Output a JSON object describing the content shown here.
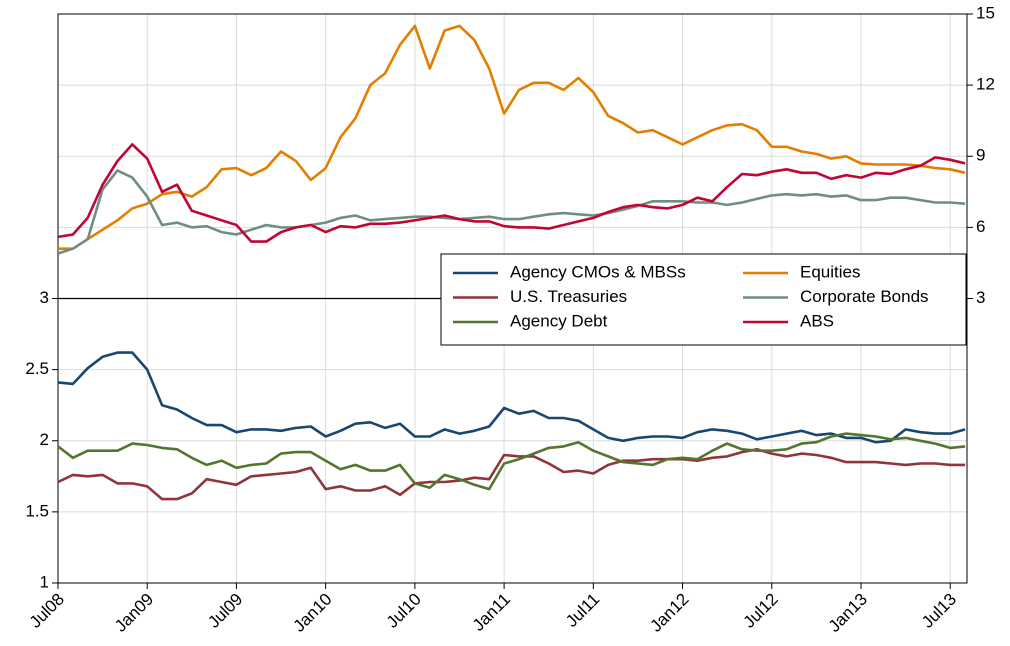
{
  "chart_data": {
    "type": "line",
    "categories": [
      "Jul08",
      null,
      null,
      null,
      null,
      null,
      "Jan09",
      null,
      null,
      null,
      null,
      null,
      "Jul09",
      null,
      null,
      null,
      null,
      null,
      "Jan10",
      null,
      null,
      null,
      null,
      null,
      "Jul10",
      null,
      null,
      null,
      null,
      null,
      "Jan11",
      null,
      null,
      null,
      null,
      null,
      "Jul11",
      null,
      null,
      null,
      null,
      null,
      "Jan12",
      null,
      null,
      null,
      null,
      null,
      "Jul12",
      null,
      null,
      null,
      null,
      null,
      "Jan13",
      null,
      null,
      null,
      null,
      null,
      "Jul13",
      null
    ],
    "ylim": [
      1,
      5
    ],
    "yticks": [
      1,
      1.5,
      2,
      2.5,
      3
    ],
    "y2lim": [
      -9,
      15
    ],
    "y2ticks": [
      3,
      6,
      9,
      12,
      15
    ],
    "grid": true,
    "legend_position": "right",
    "series": [
      {
        "name": "Agency CMOs & MBSs",
        "color": "#1a476f",
        "axis": "y",
        "values": [
          2.41,
          2.4,
          2.51,
          2.59,
          2.62,
          2.62,
          2.5,
          2.25,
          2.22,
          2.16,
          2.11,
          2.11,
          2.06,
          2.08,
          2.08,
          2.07,
          2.09,
          2.1,
          2.03,
          2.07,
          2.12,
          2.13,
          2.09,
          2.12,
          2.03,
          2.03,
          2.08,
          2.05,
          2.07,
          2.1,
          2.23,
          2.19,
          2.21,
          2.16,
          2.16,
          2.14,
          2.08,
          2.02,
          2.0,
          2.02,
          2.03,
          2.03,
          2.02,
          2.06,
          2.08,
          2.07,
          2.05,
          2.01,
          2.03,
          2.05,
          2.07,
          2.04,
          2.05,
          2.02,
          2.02,
          1.99,
          2.0,
          2.08,
          2.06,
          2.05,
          2.05,
          2.08
        ]
      },
      {
        "name": "Equities",
        "color": "#e37e00",
        "axis": "y2",
        "values": [
          5.1,
          5.1,
          5.5,
          5.9,
          6.3,
          6.8,
          7.0,
          7.4,
          7.5,
          7.3,
          7.7,
          8.45,
          8.5,
          8.2,
          8.5,
          9.2,
          8.8,
          8.0,
          8.5,
          9.8,
          10.6,
          12.0,
          12.5,
          13.7,
          14.5,
          12.7,
          14.3,
          14.5,
          13.9,
          12.7,
          10.8,
          11.8,
          12.1,
          12.1,
          11.8,
          12.3,
          11.7,
          10.7,
          10.4,
          10.0,
          10.1,
          9.8,
          9.5,
          9.8,
          10.1,
          10.3,
          10.35,
          10.1,
          9.4,
          9.4,
          9.2,
          9.1,
          8.9,
          9.0,
          8.7,
          8.65,
          8.65,
          8.65,
          8.6,
          8.5,
          8.45,
          8.3
        ]
      },
      {
        "name": "U.S. Treasuries",
        "color": "#90353b",
        "axis": "y",
        "values": [
          1.71,
          1.76,
          1.75,
          1.76,
          1.7,
          1.7,
          1.68,
          1.59,
          1.59,
          1.63,
          1.73,
          1.71,
          1.69,
          1.75,
          1.76,
          1.77,
          1.78,
          1.81,
          1.66,
          1.68,
          1.65,
          1.65,
          1.68,
          1.62,
          1.7,
          1.71,
          1.71,
          1.72,
          1.74,
          1.73,
          1.9,
          1.89,
          1.89,
          1.84,
          1.78,
          1.79,
          1.77,
          1.83,
          1.86,
          1.86,
          1.87,
          1.87,
          1.87,
          1.86,
          1.88,
          1.89,
          1.92,
          1.94,
          1.91,
          1.89,
          1.91,
          1.9,
          1.88,
          1.85,
          1.85,
          1.85,
          1.84,
          1.83,
          1.84,
          1.84,
          1.83,
          1.83
        ]
      },
      {
        "name": "Corporate Bonds",
        "color": "#6e8e84",
        "axis": "y2",
        "values": [
          4.9,
          5.1,
          5.5,
          7.6,
          8.4,
          8.1,
          7.3,
          6.1,
          6.2,
          6.0,
          6.05,
          5.8,
          5.7,
          5.9,
          6.1,
          6.0,
          6.0,
          6.1,
          6.2,
          6.4,
          6.5,
          6.3,
          6.35,
          6.4,
          6.45,
          6.45,
          6.4,
          6.35,
          6.4,
          6.45,
          6.35,
          6.35,
          6.45,
          6.55,
          6.6,
          6.55,
          6.5,
          6.6,
          6.75,
          6.9,
          7.1,
          7.1,
          7.1,
          7.05,
          7.05,
          6.95,
          7.05,
          7.2,
          7.35,
          7.4,
          7.35,
          7.4,
          7.3,
          7.35,
          7.15,
          7.15,
          7.25,
          7.25,
          7.15,
          7.05,
          7.05,
          7.0
        ]
      },
      {
        "name": "Agency Debt",
        "color": "#55752f",
        "axis": "y",
        "values": [
          1.96,
          1.88,
          1.93,
          1.93,
          1.93,
          1.98,
          1.97,
          1.95,
          1.94,
          1.88,
          1.83,
          1.86,
          1.81,
          1.83,
          1.84,
          1.91,
          1.92,
          1.92,
          1.86,
          1.8,
          1.83,
          1.79,
          1.79,
          1.83,
          1.7,
          1.67,
          1.76,
          1.73,
          1.69,
          1.66,
          1.84,
          1.87,
          1.91,
          1.95,
          1.96,
          1.99,
          1.93,
          1.89,
          1.85,
          1.84,
          1.83,
          1.87,
          1.88,
          1.87,
          1.93,
          1.98,
          1.94,
          1.93,
          1.93,
          1.94,
          1.98,
          1.99,
          2.03,
          2.05,
          2.04,
          2.03,
          2.01,
          2.02,
          2.0,
          1.98,
          1.95,
          1.96
        ]
      },
      {
        "name": "ABS",
        "color": "#c10534",
        "axis": "y2",
        "values": [
          5.6,
          5.7,
          6.4,
          7.8,
          8.8,
          9.5,
          8.9,
          7.5,
          7.8,
          6.7,
          6.5,
          6.3,
          6.1,
          5.4,
          5.4,
          5.8,
          6.0,
          6.1,
          5.8,
          6.05,
          6.0,
          6.15,
          6.15,
          6.2,
          6.3,
          6.4,
          6.5,
          6.35,
          6.25,
          6.25,
          6.05,
          6.0,
          6.0,
          5.95,
          6.1,
          6.25,
          6.4,
          6.65,
          6.85,
          6.95,
          6.85,
          6.8,
          6.95,
          7.25,
          7.1,
          7.7,
          8.25,
          8.2,
          8.35,
          8.45,
          8.3,
          8.3,
          8.05,
          8.2,
          8.1,
          8.3,
          8.25,
          8.45,
          8.6,
          8.95,
          8.85,
          8.7
        ]
      }
    ]
  }
}
